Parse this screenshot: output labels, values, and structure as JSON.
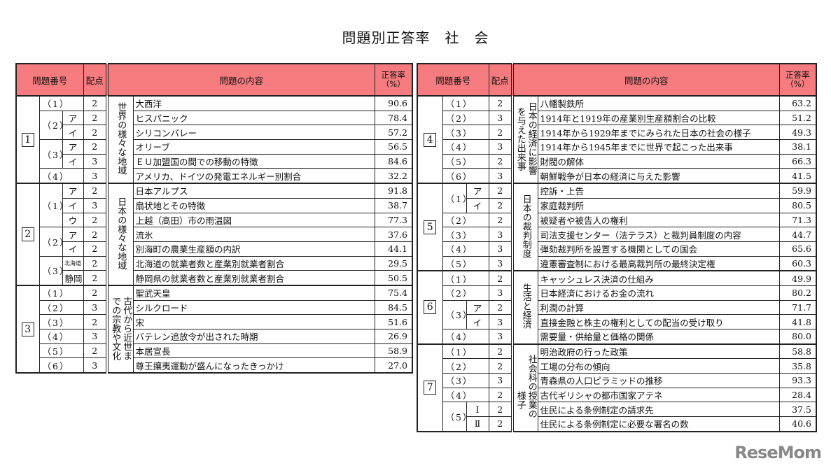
{
  "title": "問題別正答率　社　会",
  "header": {
    "qno": "問題番号",
    "points": "配点",
    "content": "問題の内容",
    "rate": "正答率\n（%）"
  },
  "colors": {
    "header_bg": "#f67b7f",
    "border": "#222222"
  },
  "logo": "ReseMom",
  "tables": [
    {
      "sections": [
        {
          "num": "1",
          "topic": [
            "世界の様々な地域"
          ],
          "rows": [
            {
              "q": "（1）",
              "sub": "",
              "pts": "2",
              "content": "大西洋",
              "rate": "90.6"
            },
            {
              "q": "（2）",
              "sub": "ア",
              "pts": "2",
              "content": "ヒスパニック",
              "rate": "78.4"
            },
            {
              "q": "（2）",
              "sub": "イ",
              "pts": "2",
              "content": "シリコンバレー",
              "rate": "57.2"
            },
            {
              "q": "（3）",
              "sub": "ア",
              "pts": "2",
              "content": "オリーブ",
              "rate": "56.5"
            },
            {
              "q": "（3）",
              "sub": "イ",
              "pts": "3",
              "content": "ＥＵ加盟国の間での移動の特徴",
              "rate": "84.6"
            },
            {
              "q": "（4）",
              "sub": "",
              "pts": "3",
              "content": "アメリカ、ドイツの発電エネルギー別割合",
              "rate": "32.2"
            }
          ]
        },
        {
          "num": "2",
          "topic": [
            "日本の様々な地域"
          ],
          "rows": [
            {
              "q": "（1）",
              "sub": "ア",
              "pts": "2",
              "content": "日本アルプス",
              "rate": "91.8"
            },
            {
              "q": "（1）",
              "sub": "イ",
              "pts": "3",
              "content": "扇状地とその特徴",
              "rate": "38.7"
            },
            {
              "q": "（1）",
              "sub": "ウ",
              "pts": "2",
              "content": "上越（高田）市の雨温図",
              "rate": "77.3"
            },
            {
              "q": "（2）",
              "sub": "ア",
              "pts": "2",
              "content": "流氷",
              "rate": "37.6"
            },
            {
              "q": "（2）",
              "sub": "イ",
              "pts": "2",
              "content": "別海町の農業生産額の内訳",
              "rate": "44.1"
            },
            {
              "q": "（3）",
              "sub": "北海道",
              "pts": "2",
              "content": "北海道の就業者数と産業別就業者割合",
              "rate": "29.5"
            },
            {
              "q": "（3）",
              "sub": "静岡",
              "pts": "2",
              "content": "静岡県の就業者数と産業別就業者割合",
              "rate": "50.5"
            }
          ]
        },
        {
          "num": "3",
          "topic": [
            "古代から近世ま",
            "での宗教や文化"
          ],
          "rows": [
            {
              "q": "（1）",
              "sub": "",
              "pts": "2",
              "content": "聖武天皇",
              "rate": "75.4"
            },
            {
              "q": "（2）",
              "sub": "",
              "pts": "3",
              "content": "シルクロード",
              "rate": "84.5"
            },
            {
              "q": "（3）",
              "sub": "",
              "pts": "2",
              "content": "宋",
              "rate": "51.6"
            },
            {
              "q": "（4）",
              "sub": "",
              "pts": "3",
              "content": "バテレン追放令が出された時期",
              "rate": "26.9"
            },
            {
              "q": "（5）",
              "sub": "",
              "pts": "2",
              "content": "本居宣長",
              "rate": "58.9"
            },
            {
              "q": "（6）",
              "sub": "",
              "pts": "3",
              "content": "尊王攘夷運動が盛んになったきっかけ",
              "rate": "27.0"
            }
          ]
        }
      ]
    },
    {
      "sections": [
        {
          "num": "4",
          "topic": [
            "日本の経済に影響",
            "を与えた出来事"
          ],
          "rows": [
            {
              "q": "（1）",
              "sub": "",
              "pts": "2",
              "content": "八幡製鉄所",
              "rate": "63.2"
            },
            {
              "q": "（2）",
              "sub": "",
              "pts": "3",
              "content": "1914年と1919年の産業別生産額割合の比較",
              "rate": "51.2"
            },
            {
              "q": "（3）",
              "sub": "",
              "pts": "2",
              "content": "1914年から1929年までにみられた日本の社会の様子",
              "rate": "49.3"
            },
            {
              "q": "（4）",
              "sub": "",
              "pts": "3",
              "content": "1914年から1945年までに世界で起こった出来事",
              "rate": "38.1"
            },
            {
              "q": "（5）",
              "sub": "",
              "pts": "2",
              "content": "財閥の解体",
              "rate": "66.3"
            },
            {
              "q": "（6）",
              "sub": "",
              "pts": "3",
              "content": "朝鮮戦争が日本の経済に与えた影響",
              "rate": "41.5"
            }
          ]
        },
        {
          "num": "5",
          "topic": [
            "日本の裁判制度"
          ],
          "rows": [
            {
              "q": "（1）",
              "sub": "ア",
              "pts": "2",
              "content": "控訴・上告",
              "rate": "59.9"
            },
            {
              "q": "（1）",
              "sub": "イ",
              "pts": "2",
              "content": "家庭裁判所",
              "rate": "80.5"
            },
            {
              "q": "（2）",
              "sub": "",
              "pts": "2",
              "content": "被疑者や被告人の権利",
              "rate": "71.3"
            },
            {
              "q": "（3）",
              "sub": "",
              "pts": "3",
              "content": "司法支援センター（法テラス）と裁判員制度の内容",
              "rate": "44.7"
            },
            {
              "q": "（4）",
              "sub": "",
              "pts": "3",
              "content": "弾劾裁判所を設置する機関としての国会",
              "rate": "65.6"
            },
            {
              "q": "（5）",
              "sub": "",
              "pts": "3",
              "content": "違憲審査制における最高裁判所の最終決定権",
              "rate": "60.3"
            }
          ]
        },
        {
          "num": "6",
          "topic": [
            "生活と経済"
          ],
          "rows": [
            {
              "q": "（1）",
              "sub": "",
              "pts": "2",
              "content": "キャッシュレス決済の仕組み",
              "rate": "49.9"
            },
            {
              "q": "（2）",
              "sub": "",
              "pts": "3",
              "content": "日本経済におけるお金の流れ",
              "rate": "80.2"
            },
            {
              "q": "（3）",
              "sub": "ア",
              "pts": "2",
              "content": "利潤の計算",
              "rate": "71.7"
            },
            {
              "q": "（3）",
              "sub": "イ",
              "pts": "3",
              "content": "直接金融と株主の権利としての配当の受け取り",
              "rate": "41.8"
            },
            {
              "q": "（4）",
              "sub": "",
              "pts": "3",
              "content": "需要量・供給量と価格の関係",
              "rate": "80.0"
            }
          ]
        },
        {
          "num": "7",
          "topic": [
            "社会科の授業の",
            "　　　様子"
          ],
          "rows": [
            {
              "q": "（1）",
              "sub": "",
              "pts": "2",
              "content": "明治政府の行った政策",
              "rate": "58.8"
            },
            {
              "q": "（2）",
              "sub": "",
              "pts": "2",
              "content": "工場の分布の傾向",
              "rate": "35.8"
            },
            {
              "q": "（3）",
              "sub": "",
              "pts": "3",
              "content": "青森県の人口ピラミッドの推移",
              "rate": "93.3"
            },
            {
              "q": "（4）",
              "sub": "",
              "pts": "2",
              "content": "古代ギリシャの都市国家アテネ",
              "rate": "28.4"
            },
            {
              "q": "（5）",
              "sub": "Ⅰ",
              "pts": "2",
              "content": "住民による条例制定の請求先",
              "rate": "37.5"
            },
            {
              "q": "（5）",
              "sub": "Ⅱ",
              "pts": "2",
              "content": "住民による条例制定に必要な署名の数",
              "rate": "40.6"
            }
          ]
        }
      ]
    }
  ]
}
